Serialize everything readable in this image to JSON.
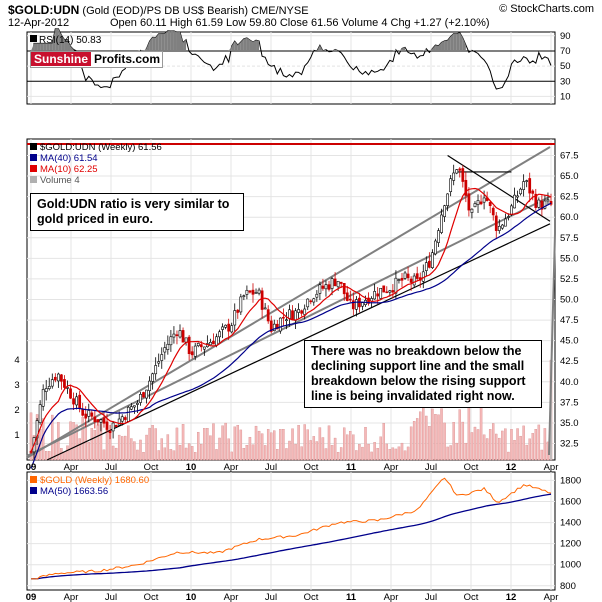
{
  "header": {
    "symbol": "$GOLD:UDN",
    "description": "(Gold (EOD)/PS DB US$ Bearish) CME/NYSE",
    "watermark": "© StockCharts.com",
    "date": "12-Apr-2012",
    "ohlc": "Open 60.11  High 61.59  Low 59.80  Close 61.56  Volume 4  Chg +1.27 (+2.10%)"
  },
  "logo": {
    "part1": "Sunshine",
    "part2": "Profits.com"
  },
  "colors": {
    "price": "#000000",
    "up_candle": "#000000",
    "down_candle": "#cc0000",
    "ma40": "#00008b",
    "ma10": "#e00000",
    "resistance": "#cc0000",
    "channel": "#808080",
    "support": "#000000",
    "volume": "#f4b8b8",
    "gold": "#ff6600",
    "ma50": "#00008b",
    "rsi": "#000000",
    "rsi_fill": "#808080"
  },
  "rsi": {
    "label": "RSI(14) 50.83",
    "ticks": [
      90,
      70,
      50,
      30,
      10
    ],
    "overbought": 70,
    "oversold": 30
  },
  "main": {
    "legend": [
      {
        "label": "$GOLD:UDN (Weekly) 61.56",
        "color": "#000000"
      },
      {
        "label": "MA(40) 61.54",
        "color": "#00008b"
      },
      {
        "label": "MA(10) 62.25",
        "color": "#e00000"
      },
      {
        "label": "Volume 4",
        "color": "#b0b0b0"
      }
    ],
    "price_ticks": [
      "67.5",
      "65.0",
      "62.5",
      "60.0",
      "57.5",
      "55.0",
      "52.5",
      "50.0",
      "47.5",
      "45.0",
      "42.5",
      "40.0",
      "37.5",
      "35.0",
      "32.5"
    ],
    "volume_ticks": [
      "4",
      "3",
      "2",
      "1"
    ],
    "resistance_level": 68.9
  },
  "callouts": {
    "left": "Gold:UDN ratio is very similar to gold priced in euro.",
    "right": "There was no breakdown below the declining support line and the small breakdown below the rising support line is being invalidated right now."
  },
  "gold_panel": {
    "legend": [
      {
        "label": "$GOLD (Weekly) 1680.60",
        "color": "#ff6600"
      },
      {
        "label": "MA(50) 1663.56",
        "color": "#00008b"
      }
    ],
    "ticks": [
      "1800",
      "1600",
      "1400",
      "1200",
      "1000",
      "800"
    ]
  },
  "x_axis": {
    "labels": [
      "09",
      "Apr",
      "Jul",
      "Oct",
      "10",
      "Apr",
      "Jul",
      "Oct",
      "11",
      "Apr",
      "Jul",
      "Oct",
      "12",
      "Apr"
    ]
  },
  "chart_data": {
    "type": "line",
    "title": "$GOLD:UDN (Gold (EOD)/PS DB US$ Bearish) CME/NYSE",
    "frequency": "weekly",
    "x_range": [
      "2009-01",
      "2012-04"
    ],
    "ylim": [
      30.5,
      69.5
    ],
    "price_anchors": [
      [
        "2009-01",
        31.5
      ],
      [
        "2009-02",
        39.5
      ],
      [
        "2009-03",
        41.0
      ],
      [
        "2009-04",
        38.5
      ],
      [
        "2009-05",
        36.0
      ],
      [
        "2009-06",
        35.5
      ],
      [
        "2009-07",
        34.5
      ],
      [
        "2009-08",
        36.0
      ],
      [
        "2009-09",
        37.5
      ],
      [
        "2009-10",
        40.5
      ],
      [
        "2009-11",
        44.0
      ],
      [
        "2009-12",
        46.5
      ],
      [
        "2010-01",
        43.5
      ],
      [
        "2010-02",
        44.5
      ],
      [
        "2010-03",
        45.5
      ],
      [
        "2010-04",
        47.0
      ],
      [
        "2010-05",
        50.5
      ],
      [
        "2010-06",
        51.0
      ],
      [
        "2010-07",
        46.5
      ],
      [
        "2010-08",
        48.0
      ],
      [
        "2010-09",
        48.5
      ],
      [
        "2010-10",
        50.5
      ],
      [
        "2010-11",
        51.5
      ],
      [
        "2010-12",
        52.5
      ],
      [
        "2011-01",
        49.0
      ],
      [
        "2011-02",
        50.0
      ],
      [
        "2011-03",
        51.0
      ],
      [
        "2011-04",
        51.5
      ],
      [
        "2011-05",
        52.5
      ],
      [
        "2011-06",
        52.0
      ],
      [
        "2011-07",
        55.0
      ],
      [
        "2011-08",
        62.0
      ],
      [
        "2011-09",
        66.5
      ],
      [
        "2011-10",
        60.0
      ],
      [
        "2011-11",
        63.0
      ],
      [
        "2011-12",
        58.5
      ],
      [
        "2012-01",
        61.0
      ],
      [
        "2012-02",
        64.5
      ],
      [
        "2012-03",
        61.5
      ],
      [
        "2012-04",
        61.56
      ]
    ],
    "ma40_last": 61.54,
    "ma10_last": 62.25,
    "gold_anchors": [
      [
        "2009-01",
        860
      ],
      [
        "2009-03",
        920
      ],
      [
        "2009-06",
        940
      ],
      [
        "2009-09",
        1000
      ],
      [
        "2009-12",
        1120
      ],
      [
        "2010-03",
        1110
      ],
      [
        "2010-06",
        1240
      ],
      [
        "2010-09",
        1280
      ],
      [
        "2010-12",
        1400
      ],
      [
        "2011-03",
        1420
      ],
      [
        "2011-06",
        1520
      ],
      [
        "2011-08",
        1830
      ],
      [
        "2011-09",
        1650
      ],
      [
        "2011-11",
        1720
      ],
      [
        "2011-12",
        1590
      ],
      [
        "2012-02",
        1760
      ],
      [
        "2012-04",
        1680.6
      ]
    ],
    "gold_ma50_last": 1663.56,
    "gold_ylim": [
      760,
      1880
    ],
    "rsi_last": 50.83,
    "volume_last": 4
  }
}
